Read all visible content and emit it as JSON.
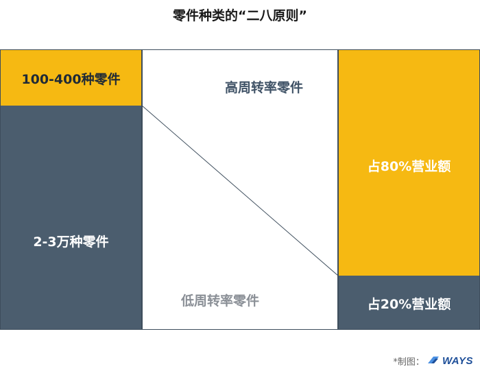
{
  "title": "零件种类的“二八原则”",
  "left": {
    "top_label": "100-400种零件",
    "bottom_label": "2-3万种零件"
  },
  "middle": {
    "high_label": "高周转率零件",
    "low_label": "低周转率零件"
  },
  "right": {
    "top_label": "占80%营业额",
    "bottom_label": "占20%营业额"
  },
  "footer": {
    "credit_label": "*制图：",
    "logo_text": "WAYS"
  },
  "colors": {
    "yellow": "#f6b912",
    "slate": "#4b5d6e",
    "line": "#3d4d5c"
  }
}
